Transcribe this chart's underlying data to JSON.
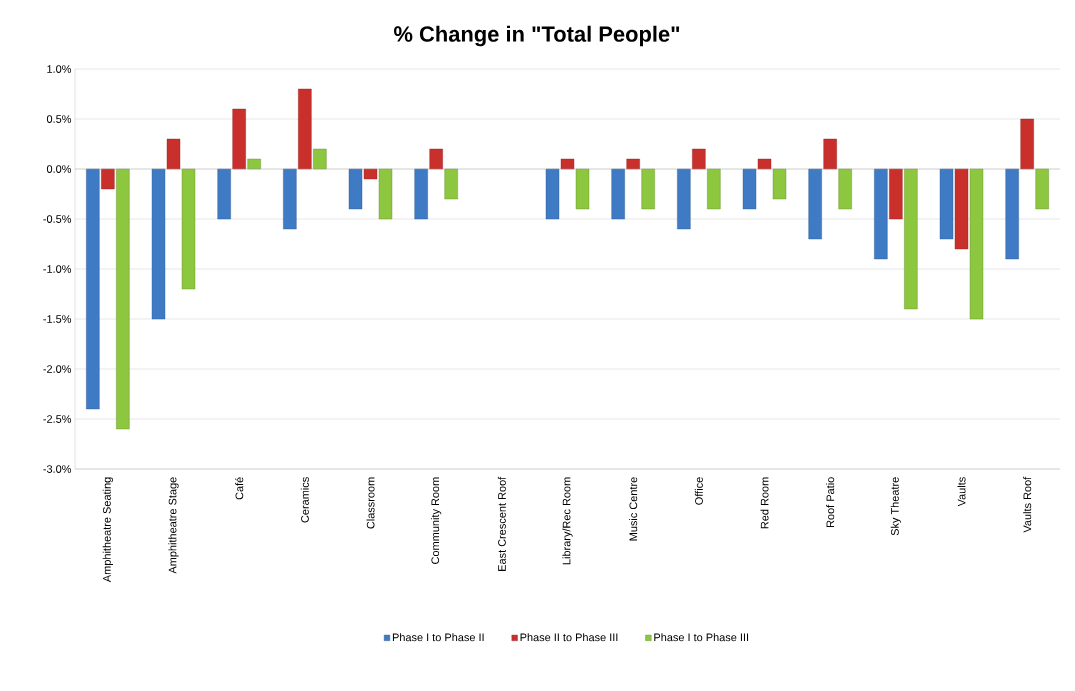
{
  "chart_data": {
    "type": "bar",
    "title": "% Change in \"Total People\"",
    "categories": [
      "Amphitheatre Seating",
      "Amphitheatre Stage",
      "Café",
      "Ceramics",
      "Classroom",
      "Community Room",
      "East Crescent Roof",
      "Library/Rec Room",
      "Music Centre",
      "Office",
      "Red Room",
      "Roof Patio",
      "Sky Theatre",
      "Vaults",
      "Vaults Roof"
    ],
    "series": [
      {
        "name": "Phase I to Phase II",
        "color": "#3f7bc4",
        "values": [
          -2.4,
          -1.5,
          -0.5,
          -0.6,
          -0.4,
          -0.5,
          null,
          -0.5,
          -0.5,
          -0.6,
          -0.4,
          -0.7,
          -0.9,
          -0.7,
          -0.9
        ]
      },
      {
        "name": "Phase II to Phase III",
        "color": "#c9302c",
        "values": [
          -0.2,
          0.3,
          0.6,
          0.8,
          -0.1,
          0.2,
          null,
          0.1,
          0.1,
          0.2,
          0.1,
          0.3,
          -0.5,
          -0.8,
          0.5
        ]
      },
      {
        "name": "Phase I to Phase III",
        "color": "#8dc63f",
        "values": [
          -2.6,
          -1.2,
          0.1,
          0.2,
          -0.5,
          -0.3,
          null,
          -0.4,
          -0.4,
          -0.4,
          -0.3,
          -0.4,
          -1.4,
          -1.5,
          -0.4
        ]
      }
    ],
    "ylim": [
      -3.0,
      1.0
    ],
    "yticks": [
      {
        "value": -3.0,
        "label": "-3.0%"
      },
      {
        "value": -2.5,
        "label": "-2.5%"
      },
      {
        "value": -2.0,
        "label": "-2.0%"
      },
      {
        "value": -1.5,
        "label": "-1.5%"
      },
      {
        "value": -1.0,
        "label": "-1.0%"
      },
      {
        "value": -0.5,
        "label": "-0.5%"
      },
      {
        "value": 0.0,
        "label": "0.0%"
      },
      {
        "value": 0.5,
        "label": "0.5%"
      },
      {
        "value": 1.0,
        "label": "1.0%"
      }
    ],
    "grid": "y",
    "legend": "bottom"
  }
}
